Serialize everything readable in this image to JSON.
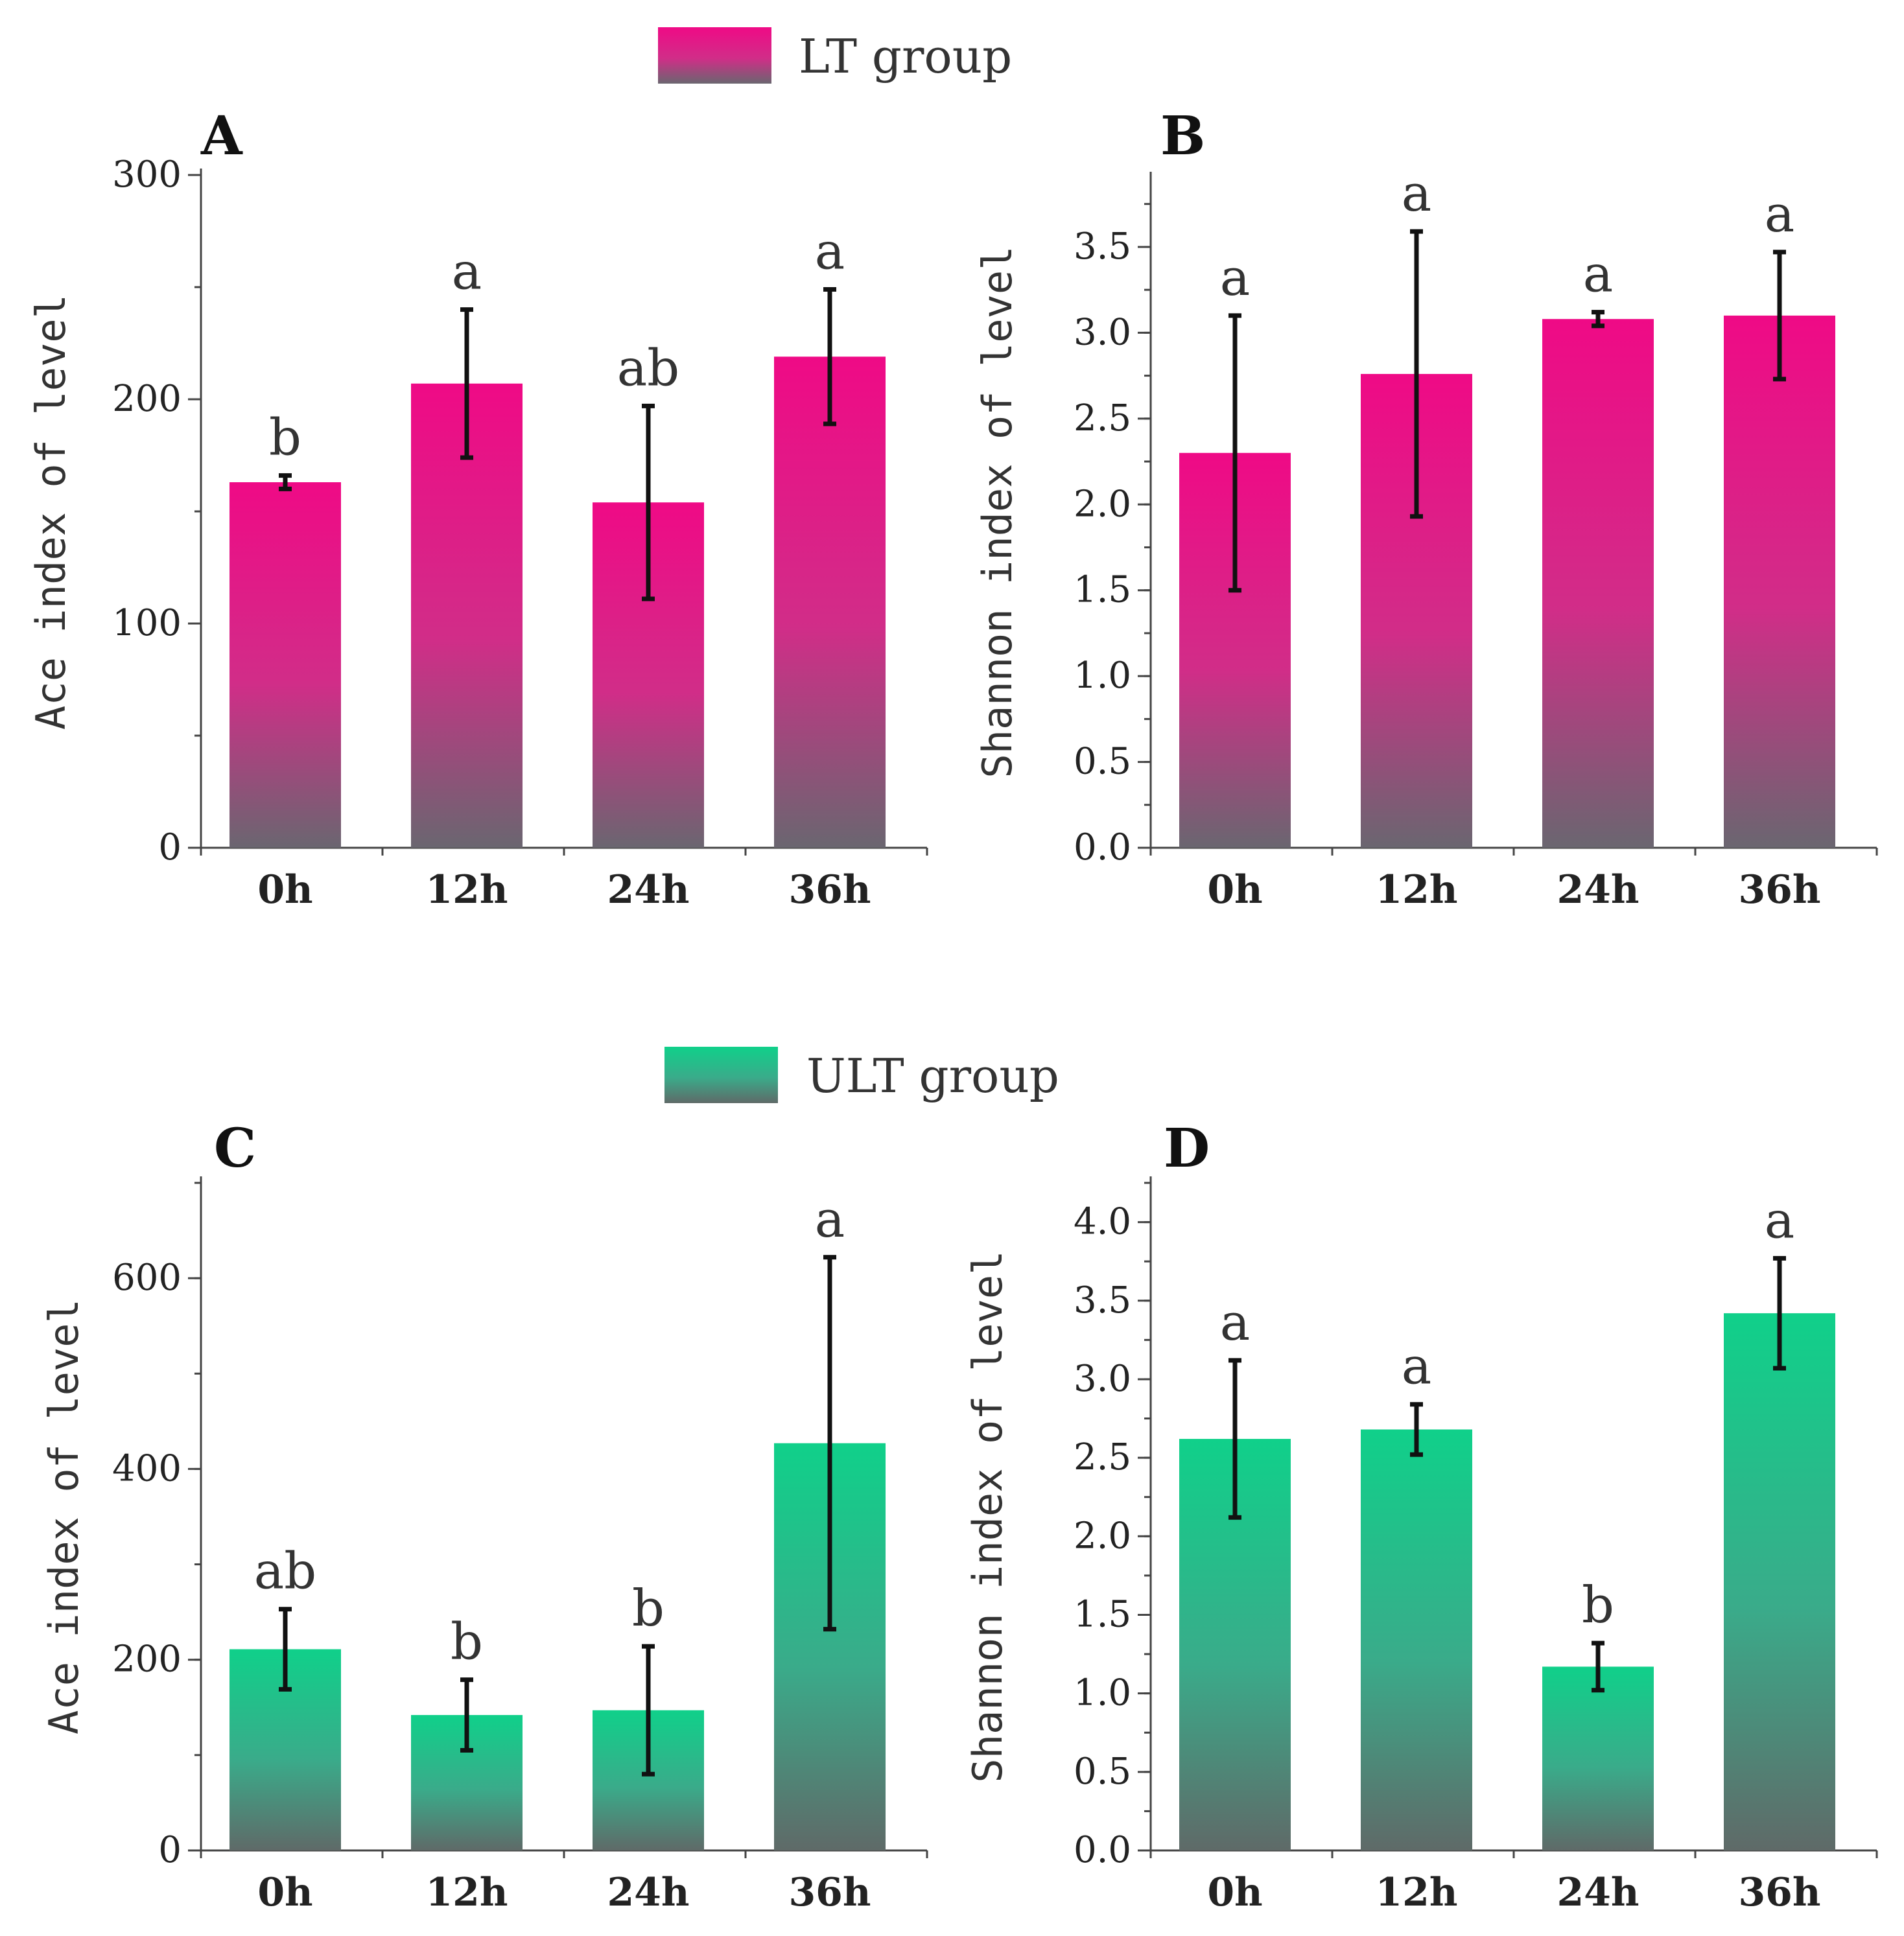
{
  "colors": {
    "lt_top": "#ef0a86",
    "lt_bottom": "#6a6670",
    "ult_top": "#10d08a",
    "ult_bottom": "#5f6a68"
  },
  "legends": {
    "lt": "LT group",
    "ult": "ULT group"
  },
  "chart_data": [
    {
      "panel": "A",
      "type": "bar",
      "group": "lt",
      "categories": [
        "0h",
        "12h",
        "24h",
        "36h"
      ],
      "values": [
        163,
        207,
        154,
        219
      ],
      "errors": [
        3,
        33,
        43,
        30
      ],
      "significance": [
        "b",
        "a",
        "ab",
        "a"
      ],
      "ylabel": "Ace index of level",
      "ylim": [
        0,
        300
      ],
      "yticks": [
        0,
        100,
        200,
        300
      ],
      "ytick_labels": [
        "0",
        "100",
        "200",
        "300"
      ],
      "minor_step": 50
    },
    {
      "panel": "B",
      "type": "bar",
      "group": "lt",
      "categories": [
        "0h",
        "12h",
        "24h",
        "36h"
      ],
      "values": [
        2.3,
        2.76,
        3.08,
        3.1
      ],
      "errors": [
        0.8,
        0.83,
        0.04,
        0.37
      ],
      "significance": [
        "a",
        "a",
        "a",
        "a"
      ],
      "ylabel": "Shannon index of level",
      "ylim": [
        0,
        3.9
      ],
      "yticks": [
        0,
        0.5,
        1.0,
        1.5,
        2.0,
        2.5,
        3.0,
        3.5
      ],
      "ytick_labels": [
        "0.0",
        "0.5",
        "1.0",
        "1.5",
        "2.0",
        "2.5",
        "3.0",
        "3.5"
      ],
      "minor_step": 0.25
    },
    {
      "panel": "C",
      "type": "bar",
      "group": "ult",
      "categories": [
        "0h",
        "12h",
        "24h",
        "36h"
      ],
      "values": [
        211,
        142,
        147,
        427
      ],
      "errors": [
        42,
        37,
        67,
        195
      ],
      "significance": [
        "ab",
        "b",
        "b",
        "a"
      ],
      "ylabel": "Ace index of level",
      "ylim": [
        0,
        700
      ],
      "yticks": [
        0,
        200,
        400,
        600
      ],
      "ytick_labels": [
        "0",
        "200",
        "400",
        "600"
      ],
      "minor_step": 100
    },
    {
      "panel": "D",
      "type": "bar",
      "group": "ult",
      "categories": [
        "0h",
        "12h",
        "24h",
        "36h"
      ],
      "values": [
        2.62,
        2.68,
        1.17,
        3.42
      ],
      "errors": [
        0.5,
        0.16,
        0.15,
        0.35
      ],
      "significance": [
        "a",
        "a",
        "b",
        "a"
      ],
      "ylabel": "Shannon index of level",
      "ylim": [
        0,
        4.25
      ],
      "yticks": [
        0,
        0.5,
        1.0,
        1.5,
        2.0,
        2.5,
        3.0,
        3.5,
        4.0
      ],
      "ytick_labels": [
        "0.0",
        "0.5",
        "1.0",
        "1.5",
        "2.0",
        "2.5",
        "3.0",
        "3.5",
        "4.0"
      ],
      "minor_step": 0.25
    }
  ]
}
